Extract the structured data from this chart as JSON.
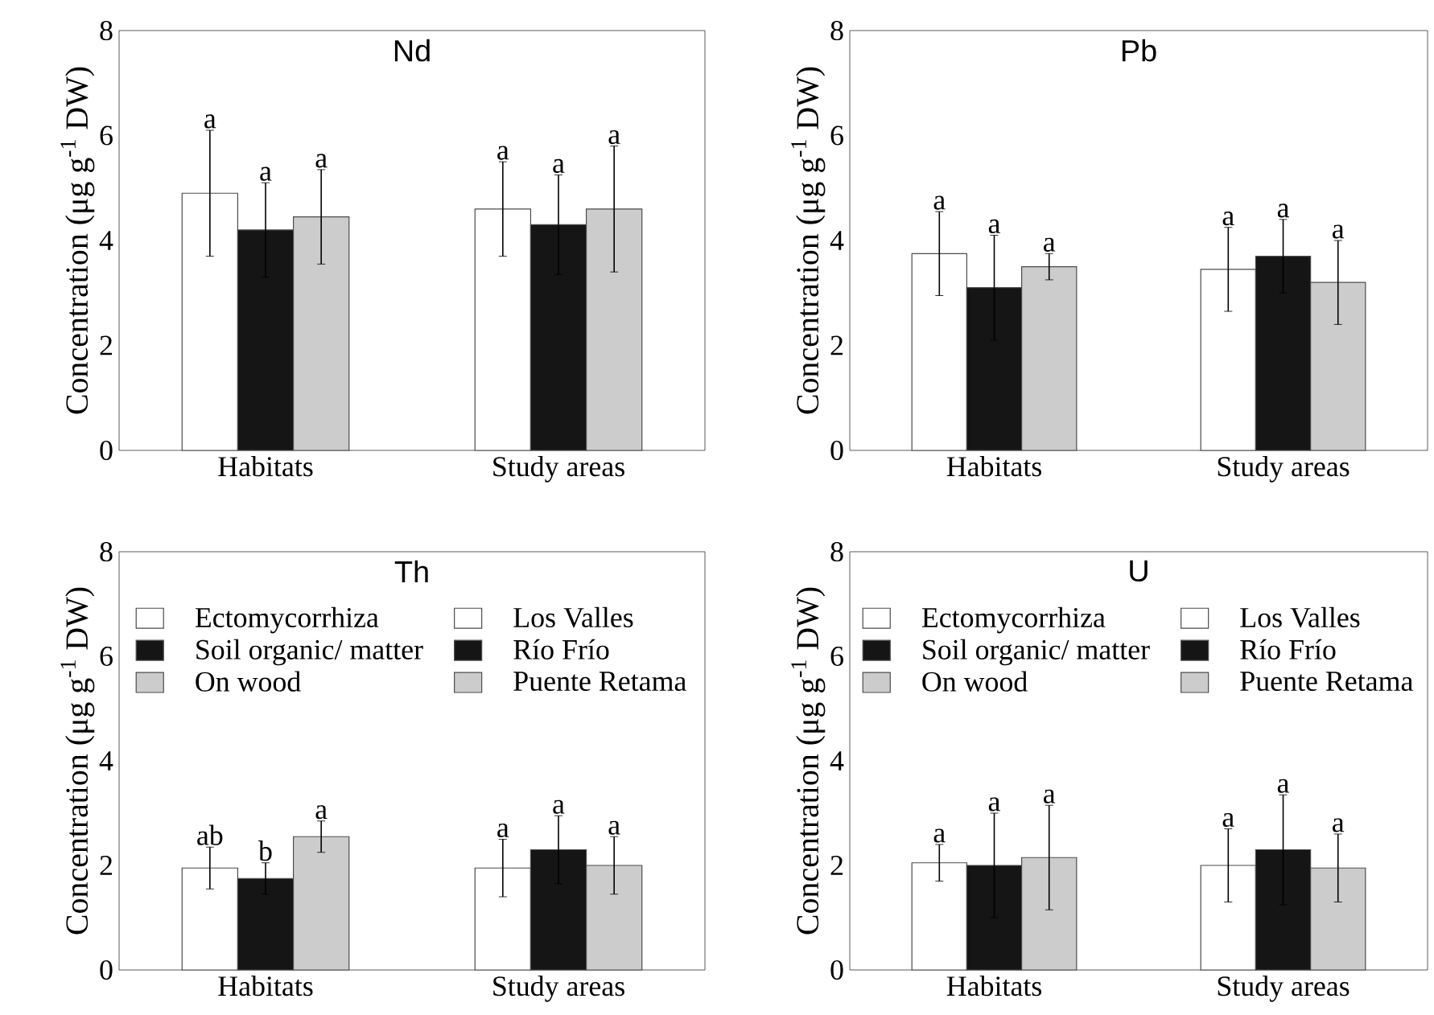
{
  "chart_data": [
    {
      "type": "bar",
      "title": "Nd",
      "ylabel": "Concentration (μg g$^{-1}$ DW)",
      "categories": [
        "Habitats",
        "Study areas"
      ],
      "ylim": [
        0,
        8
      ],
      "yticks": [
        0,
        2,
        4,
        6,
        8
      ],
      "legend": false,
      "series": [
        {
          "color": "#ffffff",
          "values": [
            4.9,
            null
          ],
          "errors": [
            1.2,
            null
          ],
          "value_labels": [
            "a",
            null
          ]
        },
        {
          "color": "#151515",
          "values": [
            4.2,
            null
          ],
          "errors": [
            0.9,
            null
          ],
          "value_labels": [
            "a",
            null
          ]
        },
        {
          "color": "#cccccc",
          "values": [
            4.45,
            null
          ],
          "errors": [
            0.9,
            null
          ],
          "value_labels": [
            "a",
            null
          ]
        },
        {
          "color": "#ffffff",
          "values": [
            null,
            4.6
          ],
          "errors": [
            null,
            0.9
          ],
          "value_labels": [
            null,
            "a"
          ]
        },
        {
          "color": "#151515",
          "values": [
            null,
            4.3
          ],
          "errors": [
            null,
            0.95
          ],
          "value_labels": [
            null,
            "a"
          ]
        },
        {
          "color": "#cccccc",
          "values": [
            null,
            4.6
          ],
          "errors": [
            null,
            1.2
          ],
          "value_labels": [
            null,
            "a"
          ]
        }
      ]
    },
    {
      "type": "bar",
      "title": "Pb",
      "ylabel": "Concentration (μg g$^{-1}$ DW)",
      "categories": [
        "Habitats",
        "Study areas"
      ],
      "ylim": [
        0,
        8
      ],
      "yticks": [
        0,
        2,
        4,
        6,
        8
      ],
      "legend": false,
      "series": [
        {
          "color": "#ffffff",
          "values": [
            3.75,
            null
          ],
          "errors": [
            0.8,
            null
          ],
          "value_labels": [
            "a",
            null
          ]
        },
        {
          "color": "#151515",
          "values": [
            3.1,
            null
          ],
          "errors": [
            1.0,
            null
          ],
          "value_labels": [
            "a",
            null
          ]
        },
        {
          "color": "#cccccc",
          "values": [
            3.5,
            null
          ],
          "errors": [
            0.25,
            null
          ],
          "value_labels": [
            "a",
            null
          ]
        },
        {
          "color": "#ffffff",
          "values": [
            null,
            3.45
          ],
          "errors": [
            null,
            0.8
          ],
          "value_labels": [
            null,
            "a"
          ]
        },
        {
          "color": "#151515",
          "values": [
            null,
            3.7
          ],
          "errors": [
            null,
            0.7
          ],
          "value_labels": [
            null,
            "a"
          ]
        },
        {
          "color": "#cccccc",
          "values": [
            null,
            3.2
          ],
          "errors": [
            null,
            0.8
          ],
          "value_labels": [
            null,
            "a"
          ]
        }
      ]
    },
    {
      "type": "bar",
      "title": "Th",
      "ylabel": "Concentration (μg g$^{-1}$ DW)",
      "categories": [
        "Habitats",
        "Study areas"
      ],
      "ylim": [
        0,
        8
      ],
      "yticks": [
        0,
        2,
        4,
        6,
        8
      ],
      "legend": "top",
      "series": [
        {
          "name": "Ectomycorrhiza",
          "color": "#ffffff",
          "values": [
            1.95,
            null
          ],
          "errors": [
            0.4,
            null
          ],
          "value_labels": [
            "ab",
            null
          ]
        },
        {
          "name": "Soil organic/ matter",
          "color": "#151515",
          "values": [
            1.75,
            null
          ],
          "errors": [
            0.3,
            null
          ],
          "value_labels": [
            "b",
            null
          ]
        },
        {
          "name": "On wood",
          "color": "#cccccc",
          "values": [
            2.55,
            null
          ],
          "errors": [
            0.3,
            null
          ],
          "value_labels": [
            "a",
            null
          ]
        },
        {
          "name": "Los Valles",
          "color": "#ffffff",
          "values": [
            null,
            1.95
          ],
          "errors": [
            null,
            0.55
          ],
          "value_labels": [
            null,
            "a"
          ]
        },
        {
          "name": "Río Frío",
          "color": "#151515",
          "values": [
            null,
            2.3
          ],
          "errors": [
            null,
            0.65
          ],
          "value_labels": [
            null,
            "a"
          ]
        },
        {
          "name": "Puente Retama",
          "color": "#cccccc",
          "values": [
            null,
            2.0
          ],
          "errors": [
            null,
            0.55
          ],
          "value_labels": [
            null,
            "a"
          ]
        }
      ]
    },
    {
      "type": "bar",
      "title": "U",
      "ylabel": "Concentration (μg g$^{-1}$ DW)",
      "categories": [
        "Habitats",
        "Study areas"
      ],
      "ylim": [
        0,
        8
      ],
      "yticks": [
        0,
        2,
        4,
        6,
        8
      ],
      "legend": "top",
      "series": [
        {
          "name": "Ectomycorrhiza",
          "color": "#ffffff",
          "values": [
            2.05,
            null
          ],
          "errors": [
            0.35,
            null
          ],
          "value_labels": [
            "a",
            null
          ]
        },
        {
          "name": "Soil organic/ matter",
          "color": "#151515",
          "values": [
            2.0,
            null
          ],
          "errors": [
            1.0,
            null
          ],
          "value_labels": [
            "a",
            null
          ]
        },
        {
          "name": "On wood",
          "color": "#cccccc",
          "values": [
            2.15,
            null
          ],
          "errors": [
            1.0,
            null
          ],
          "value_labels": [
            "a",
            null
          ]
        },
        {
          "name": "Los Valles",
          "color": "#ffffff",
          "values": [
            null,
            2.0
          ],
          "errors": [
            null,
            0.7
          ],
          "value_labels": [
            null,
            "a"
          ]
        },
        {
          "name": "Río Frío",
          "color": "#151515",
          "values": [
            null,
            2.3
          ],
          "errors": [
            null,
            1.05
          ],
          "value_labels": [
            null,
            "a"
          ]
        },
        {
          "name": "Puente Retama",
          "color": "#cccccc",
          "values": [
            null,
            1.95
          ],
          "errors": [
            null,
            0.65
          ],
          "value_labels": [
            null,
            "a"
          ]
        }
      ]
    }
  ]
}
